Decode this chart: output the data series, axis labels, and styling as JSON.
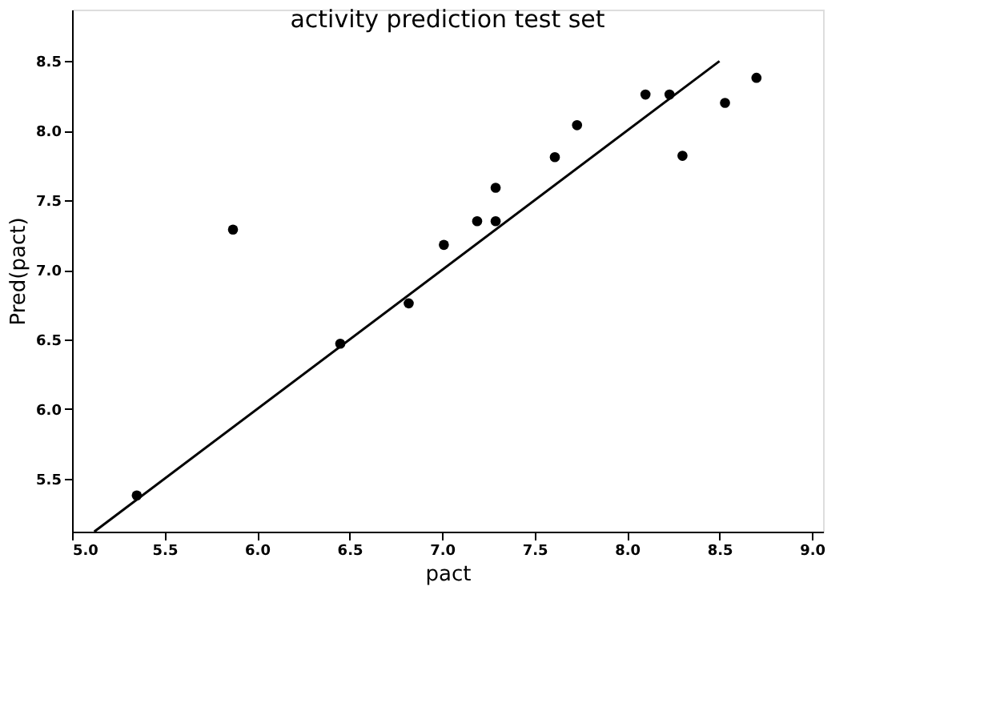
{
  "chart_data": {
    "type": "scatter",
    "title": "activity prediction test set",
    "xlabel": "pact",
    "ylabel": "Pred(pact)",
    "series": [
      {
        "color": "#000000",
        "marker": "circle",
        "x": [
          5.35,
          5.87,
          6.45,
          6.82,
          7.01,
          7.19,
          7.29,
          7.29,
          7.61,
          7.73,
          8.1,
          8.23,
          8.3,
          8.53,
          8.7
        ],
        "values": [
          5.38,
          7.29,
          6.47,
          6.76,
          7.18,
          7.35,
          7.59,
          7.35,
          7.81,
          8.04,
          8.26,
          8.26,
          7.82,
          8.2,
          8.38
        ]
      },
      {
        "type": "line",
        "color": "#000000",
        "line_style": "solid",
        "x": [
          5.12,
          8.5
        ],
        "values": [
          5.12,
          8.5
        ]
      }
    ],
    "xlim": [
      5.0,
      9.06
    ],
    "ylim": [
      5.12,
      8.87
    ],
    "xticks": [
      {
        "value": 5,
        "label": "5.0"
      },
      5.5,
      {
        "value": 6,
        "label": "6.0"
      },
      6.5,
      {
        "value": 7,
        "label": "7.0"
      },
      7.5,
      {
        "value": 8,
        "label": "8.0"
      },
      8.5,
      {
        "value": 9,
        "label": "9.0"
      }
    ],
    "yticks": [
      5.5,
      {
        "value": 6,
        "label": "6.0"
      },
      6.5,
      {
        "value": 7,
        "label": "7.0"
      },
      7.5,
      {
        "value": 8,
        "label": "8.0"
      },
      8.5
    ],
    "grid": false
  }
}
